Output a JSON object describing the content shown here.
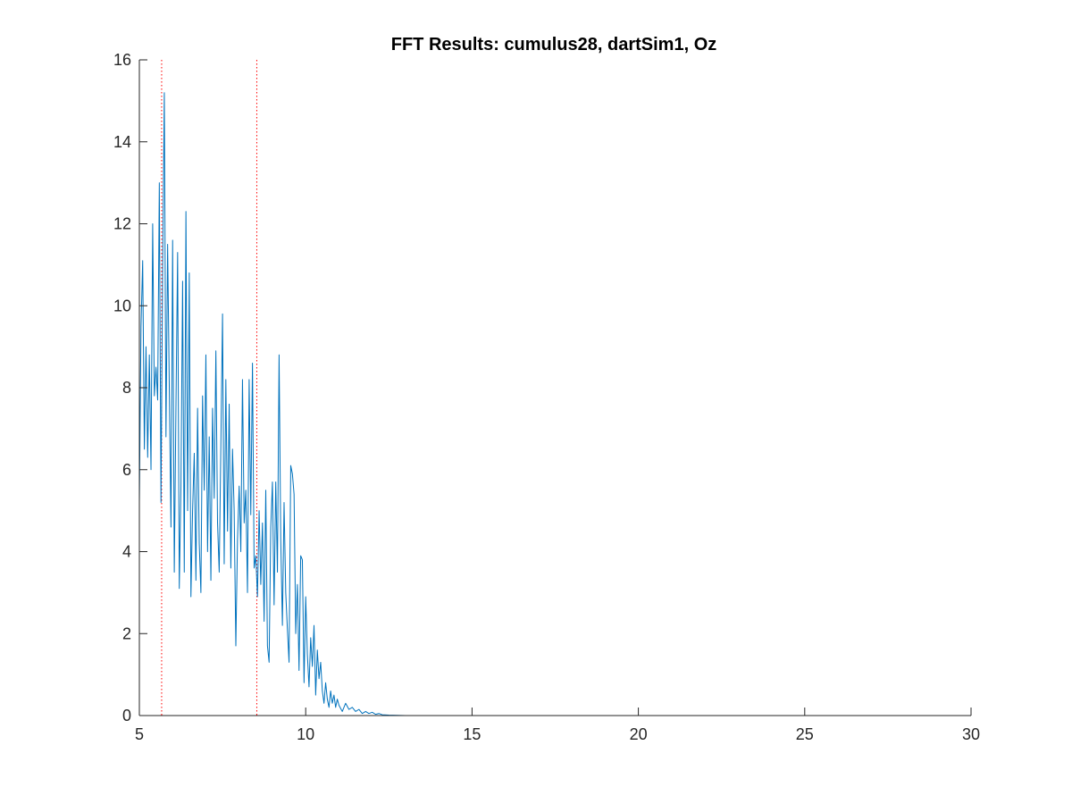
{
  "chart_data": {
    "type": "line",
    "title": "FFT Results: cumulus28, dartSim1, Oz",
    "xlabel": "",
    "ylabel": "",
    "xlim": [
      5,
      30
    ],
    "ylim": [
      0,
      16
    ],
    "xticks": [
      5,
      10,
      15,
      20,
      25,
      30
    ],
    "yticks": [
      0,
      2,
      4,
      6,
      8,
      10,
      12,
      14,
      16
    ],
    "grid": false,
    "series": [
      {
        "color": "#0072BD",
        "x": [
          5.0,
          5.05,
          5.1,
          5.15,
          5.2,
          5.25,
          5.3,
          5.35,
          5.4,
          5.45,
          5.5,
          5.55,
          5.6,
          5.65,
          5.7,
          5.75,
          5.8,
          5.85,
          5.9,
          5.95,
          6.0,
          6.05,
          6.1,
          6.15,
          6.2,
          6.25,
          6.3,
          6.35,
          6.4,
          6.45,
          6.5,
          6.55,
          6.6,
          6.65,
          6.7,
          6.75,
          6.8,
          6.85,
          6.9,
          6.95,
          7.0,
          7.05,
          7.1,
          7.15,
          7.2,
          7.25,
          7.3,
          7.35,
          7.4,
          7.45,
          7.5,
          7.55,
          7.6,
          7.65,
          7.7,
          7.75,
          7.8,
          7.85,
          7.9,
          7.95,
          8.0,
          8.05,
          8.1,
          8.15,
          8.2,
          8.25,
          8.3,
          8.35,
          8.4,
          8.45,
          8.5,
          8.55,
          8.6,
          8.65,
          8.7,
          8.75,
          8.8,
          8.85,
          8.9,
          8.95,
          9.0,
          9.05,
          9.1,
          9.15,
          9.2,
          9.25,
          9.3,
          9.35,
          9.4,
          9.45,
          9.5,
          9.55,
          9.6,
          9.65,
          9.7,
          9.75,
          9.8,
          9.85,
          9.9,
          9.95,
          10.0,
          10.05,
          10.1,
          10.15,
          10.2,
          10.25,
          10.3,
          10.35,
          10.4,
          10.45,
          10.5,
          10.55,
          10.6,
          10.65,
          10.7,
          10.75,
          10.8,
          10.85,
          10.9,
          10.95,
          11.0,
          11.1,
          11.2,
          11.3,
          11.4,
          11.5,
          11.6,
          11.7,
          11.8,
          11.9,
          12.0,
          12.1,
          12.2,
          12.3,
          12.5,
          13.0,
          14.0,
          15.0,
          16.0,
          17.0,
          18.0,
          19.0,
          20.0,
          21.0,
          22.0,
          23.0,
          24.0,
          25.0,
          26.0,
          27.0,
          28.0,
          29.0,
          30.0
        ],
        "y": [
          5.2,
          9.5,
          11.1,
          6.5,
          9.0,
          6.3,
          8.8,
          6.0,
          12.0,
          7.8,
          8.5,
          7.7,
          13.0,
          5.2,
          11.0,
          15.2,
          6.8,
          11.5,
          8.0,
          4.6,
          11.6,
          3.5,
          7.5,
          11.3,
          3.1,
          5.6,
          10.6,
          3.5,
          12.3,
          5.0,
          10.8,
          2.9,
          5.0,
          6.4,
          3.3,
          7.5,
          4.2,
          3.0,
          7.8,
          5.5,
          8.8,
          4.0,
          6.8,
          3.3,
          7.5,
          5.3,
          8.9,
          4.7,
          3.5,
          6.6,
          9.8,
          3.7,
          8.2,
          4.5,
          7.6,
          3.6,
          6.5,
          5.0,
          1.7,
          4.3,
          5.6,
          4.0,
          8.2,
          4.7,
          5.5,
          3.0,
          8.2,
          4.9,
          8.6,
          3.6,
          3.9,
          2.9,
          5.0,
          3.2,
          4.7,
          2.3,
          5.5,
          1.7,
          1.3,
          4.6,
          5.7,
          2.7,
          5.7,
          3.5,
          8.8,
          4.3,
          2.2,
          5.2,
          3.0,
          2.1,
          1.3,
          6.1,
          5.9,
          5.4,
          2.0,
          3.2,
          1.1,
          3.9,
          3.8,
          0.8,
          2.9,
          1.5,
          0.7,
          1.9,
          1.2,
          2.2,
          0.5,
          1.6,
          0.9,
          1.3,
          0.6,
          0.3,
          0.8,
          0.4,
          0.2,
          0.6,
          0.3,
          0.5,
          0.2,
          0.4,
          0.25,
          0.1,
          0.3,
          0.15,
          0.2,
          0.1,
          0.15,
          0.05,
          0.1,
          0.05,
          0.08,
          0.03,
          0.05,
          0.02,
          0.01,
          0.0,
          0.0,
          0.0,
          0.0,
          0.0,
          0.0,
          0.0,
          0.0,
          0.0,
          0.0,
          0.0,
          0.0,
          0.0,
          0.0,
          0.0,
          0.0,
          0.0,
          0.0
        ]
      }
    ],
    "reference_lines": [
      {
        "x": 5.67,
        "color": "#FF0000",
        "style": "dotted"
      },
      {
        "x": 8.53,
        "color": "#FF0000",
        "style": "dotted"
      }
    ]
  }
}
